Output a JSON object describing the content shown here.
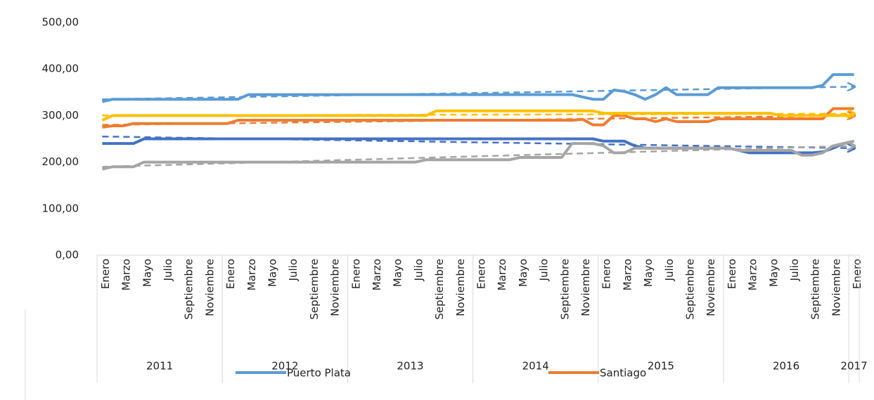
{
  "chart_data": {
    "type": "line",
    "categories": [
      "Enero",
      null,
      "Marzo",
      null,
      "Mayo",
      null,
      "Julio",
      null,
      "Septiembre",
      null,
      "Noviembre",
      null,
      "Enero",
      null,
      "Marzo",
      null,
      "Mayo",
      null,
      "Julio",
      null,
      "Septiembre",
      null,
      "Noviembre",
      null,
      "Enero",
      null,
      "Marzo",
      null,
      "Mayo",
      null,
      "Julio",
      null,
      "Septiembre",
      null,
      "Noviembre",
      null,
      "Enero",
      null,
      "Marzo",
      null,
      "Mayo",
      null,
      "Julio",
      null,
      "Septiembre",
      null,
      "Noviembre",
      null,
      "Enero",
      null,
      "Marzo",
      null,
      "Mayo",
      null,
      "Julio",
      null,
      "Septiembre",
      null,
      "Noviembre",
      null,
      "Enero",
      null,
      "Marzo",
      null,
      "Mayo",
      null,
      "Julio",
      null,
      "Septiembre",
      null,
      "Noviembre",
      null,
      "Enero"
    ],
    "years": [
      "2011",
      "2012",
      "2013",
      "2014",
      "2015",
      "2016",
      "2017"
    ],
    "ylim": [
      0,
      500
    ],
    "yticks": [
      {
        "value": 0,
        "label": "0,00"
      },
      {
        "value": 100,
        "label": "100,00"
      },
      {
        "value": 200,
        "label": "200,00"
      },
      {
        "value": 300,
        "label": "300,00"
      },
      {
        "value": 400,
        "label": "400,00"
      },
      {
        "value": 500,
        "label": "500,00"
      }
    ],
    "series": [
      {
        "name": "Puerto Plata",
        "color": "#5b9bd5",
        "trend": [
          335,
          362
        ],
        "values": [
          330,
          335,
          335,
          335,
          335,
          335,
          335,
          335,
          335,
          335,
          335,
          335,
          335,
          335,
          345,
          345,
          345,
          345,
          345,
          345,
          345,
          345,
          345,
          345,
          345,
          345,
          345,
          345,
          345,
          345,
          345,
          345,
          345,
          345,
          345,
          345,
          345,
          345,
          345,
          345,
          345,
          345,
          345,
          345,
          345,
          345,
          340,
          335,
          335,
          355,
          352,
          345,
          335,
          345,
          360,
          345,
          345,
          345,
          345,
          360,
          360,
          360,
          360,
          360,
          360,
          360,
          360,
          360,
          360,
          365,
          388,
          388,
          388
        ]
      },
      {
        "name": "Santiago",
        "color": "#ed7d31",
        "trend": [
          280,
          300
        ],
        "values": [
          275,
          278,
          278,
          283,
          283,
          283,
          283,
          283,
          283,
          283,
          283,
          283,
          283,
          290,
          290,
          290,
          290,
          290,
          290,
          290,
          290,
          290,
          290,
          290,
          290,
          290,
          290,
          290,
          290,
          290,
          290,
          290,
          290,
          290,
          290,
          290,
          290,
          290,
          290,
          290,
          290,
          290,
          290,
          290,
          290,
          290,
          292,
          280,
          280,
          300,
          300,
          293,
          293,
          287,
          293,
          287,
          287,
          287,
          287,
          293,
          293,
          293,
          293,
          293,
          293,
          293,
          293,
          293,
          293,
          293,
          315,
          315,
          315
        ]
      },
      {
        "color": "#ffc000",
        "trend": [
          300,
          304
        ],
        "values": [
          290,
          300,
          300,
          300,
          300,
          300,
          300,
          300,
          300,
          300,
          300,
          300,
          300,
          300,
          300,
          300,
          300,
          300,
          300,
          300,
          300,
          300,
          300,
          300,
          300,
          300,
          300,
          300,
          300,
          300,
          300,
          300,
          310,
          310,
          310,
          310,
          310,
          310,
          310,
          310,
          310,
          310,
          310,
          310,
          310,
          310,
          310,
          310,
          305,
          305,
          305,
          305,
          305,
          305,
          305,
          305,
          305,
          305,
          305,
          305,
          305,
          305,
          305,
          305,
          305,
          300,
          300,
          300,
          300,
          300,
          300,
          300,
          300
        ]
      },
      {
        "color": "#4472c4",
        "trend": [
          255,
          230
        ],
        "values": [
          240,
          240,
          240,
          240,
          250,
          250,
          250,
          250,
          250,
          250,
          250,
          250,
          250,
          250,
          250,
          250,
          250,
          250,
          250,
          250,
          250,
          250,
          250,
          250,
          250,
          250,
          250,
          250,
          250,
          250,
          250,
          250,
          250,
          250,
          250,
          250,
          250,
          250,
          250,
          250,
          250,
          250,
          250,
          250,
          250,
          250,
          250,
          250,
          245,
          245,
          245,
          235,
          230,
          230,
          230,
          230,
          230,
          230,
          230,
          230,
          230,
          225,
          220,
          220,
          220,
          220,
          220,
          220,
          220,
          222,
          230,
          240,
          245
        ]
      },
      {
        "color": "#a5a5a5",
        "trend": [
          190,
          235
        ],
        "values": [
          185,
          190,
          190,
          190,
          200,
          200,
          200,
          200,
          200,
          200,
          200,
          200,
          200,
          200,
          200,
          200,
          200,
          200,
          200,
          200,
          200,
          200,
          200,
          200,
          200,
          200,
          200,
          200,
          200,
          200,
          200,
          205,
          205,
          205,
          205,
          205,
          205,
          205,
          205,
          205,
          210,
          210,
          210,
          210,
          210,
          240,
          240,
          240,
          235,
          220,
          220,
          230,
          230,
          230,
          230,
          230,
          230,
          230,
          230,
          230,
          230,
          225,
          225,
          225,
          225,
          225,
          225,
          215,
          215,
          220,
          235,
          240,
          245
        ]
      }
    ]
  }
}
